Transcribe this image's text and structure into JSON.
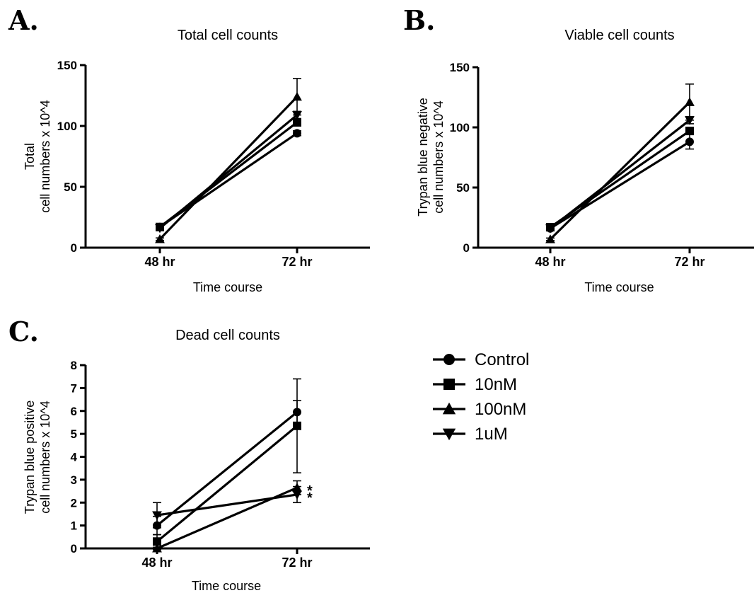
{
  "chart_data": [
    {
      "panel": "A.",
      "type": "line",
      "title": "Total cell counts",
      "ylabel_lines": [
        "Total",
        "cell numbers x 10^4"
      ],
      "xlabel": "Time course",
      "categories": [
        "48 hr",
        "72 hr"
      ],
      "ylim": [
        0,
        150
      ],
      "yticks": [
        "0",
        "50",
        "100",
        "150"
      ],
      "series": [
        {
          "name": "Control",
          "marker": "circle",
          "values": [
            17,
            94
          ],
          "err": [
            1,
            2
          ]
        },
        {
          "name": "10nM",
          "marker": "square",
          "values": [
            17,
            103
          ],
          "err": [
            2,
            3
          ]
        },
        {
          "name": "100nM",
          "marker": "triangle-up",
          "values": [
            7,
            124
          ],
          "err": [
            1,
            15
          ]
        },
        {
          "name": "1uM",
          "marker": "triangle-down",
          "values": [
            16,
            109
          ],
          "err": [
            2,
            3
          ]
        }
      ],
      "annotations": []
    },
    {
      "panel": "B.",
      "type": "line",
      "title": "Viable cell counts",
      "ylabel_lines": [
        "Trypan blue negative",
        "cell numbers x 10^4"
      ],
      "xlabel": "Time course",
      "categories": [
        "48 hr",
        "72 hr"
      ],
      "ylim": [
        0,
        150
      ],
      "yticks": [
        "0",
        "50",
        "100",
        "150"
      ],
      "series": [
        {
          "name": "Control",
          "marker": "circle",
          "values": [
            16,
            88
          ],
          "err": [
            2,
            6
          ]
        },
        {
          "name": "10nM",
          "marker": "square",
          "values": [
            17,
            97
          ],
          "err": [
            2,
            3
          ]
        },
        {
          "name": "100nM",
          "marker": "triangle-up",
          "values": [
            7,
            121
          ],
          "err": [
            1,
            15
          ]
        },
        {
          "name": "1uM",
          "marker": "triangle-down",
          "values": [
            16,
            106
          ],
          "err": [
            2,
            3
          ]
        }
      ],
      "annotations": []
    },
    {
      "panel": "C.",
      "type": "line",
      "title": "Dead cell counts",
      "ylabel_lines": [
        "Trypan blue positive",
        "cell numbers x 10^4"
      ],
      "xlabel": "Time course",
      "categories": [
        "48 hr",
        "72 hr"
      ],
      "ylim": [
        0,
        8
      ],
      "yticks": [
        "0",
        "1",
        "2",
        "3",
        "4",
        "5",
        "6",
        "7",
        "8"
      ],
      "series": [
        {
          "name": "Control",
          "marker": "circle",
          "values": [
            1.0,
            5.95
          ],
          "err": [
            0.4,
            0.5
          ]
        },
        {
          "name": "10nM",
          "marker": "square",
          "values": [
            0.3,
            5.35
          ],
          "err": [
            0.3,
            2.05
          ]
        },
        {
          "name": "100nM",
          "marker": "triangle-up",
          "values": [
            0.0,
            2.65
          ],
          "err": [
            0.05,
            0.3
          ]
        },
        {
          "name": "1uM",
          "marker": "triangle-down",
          "values": [
            1.45,
            2.35
          ],
          "err": [
            0.55,
            0.35
          ]
        }
      ],
      "annotations": [
        {
          "text": "*",
          "series": "100nM",
          "category": "72 hr"
        },
        {
          "text": "*",
          "series": "1uM",
          "category": "72 hr"
        }
      ]
    }
  ],
  "legend": {
    "items": [
      {
        "label": "Control",
        "marker": "circle"
      },
      {
        "label": "10nM",
        "marker": "square"
      },
      {
        "label": "100nM",
        "marker": "triangle-up"
      },
      {
        "label": "1uM",
        "marker": "triangle-down"
      }
    ]
  },
  "colors": {
    "ink": "#000000",
    "background": "#ffffff"
  }
}
